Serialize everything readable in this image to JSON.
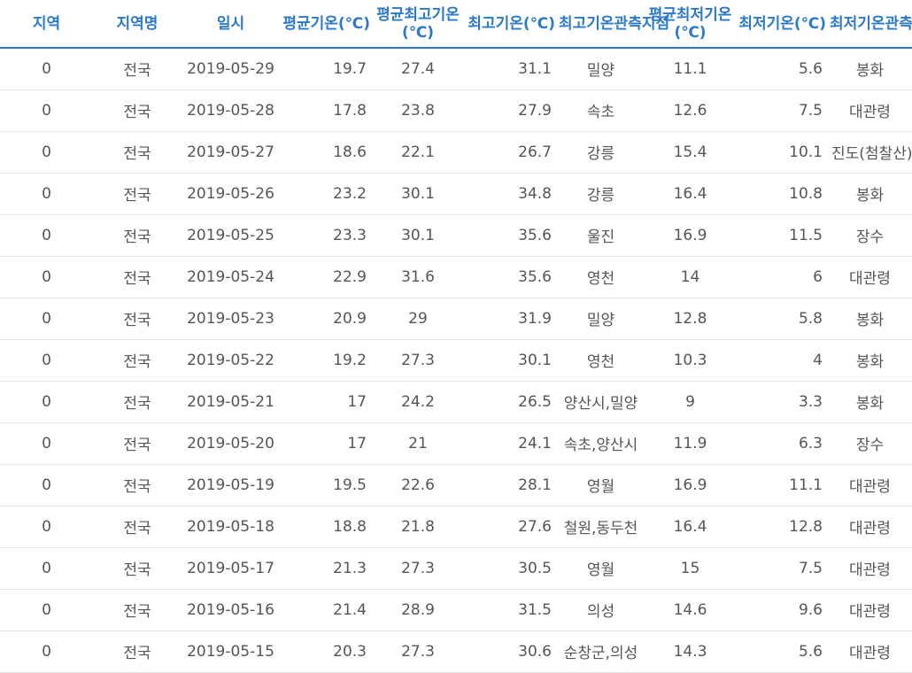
{
  "table": {
    "headers": [
      {
        "key": "region",
        "label": "지역",
        "align": "c"
      },
      {
        "key": "region_name",
        "label": "지역명",
        "align": "c"
      },
      {
        "key": "date",
        "label": "일시",
        "align": "c"
      },
      {
        "key": "avg_temp",
        "label": "평균기온(℃)",
        "align": "r"
      },
      {
        "key": "avg_max_temp",
        "label": "평균최고기온(℃)",
        "align": "c"
      },
      {
        "key": "max_temp",
        "label": "최고기온(℃)",
        "align": "r"
      },
      {
        "key": "max_temp_station",
        "label": "최고기온관측지점",
        "align": "c"
      },
      {
        "key": "avg_min_temp",
        "label": "평균최저기온(℃)",
        "align": "c"
      },
      {
        "key": "min_temp",
        "label": "최저기온(℃)",
        "align": "r"
      },
      {
        "key": "min_temp_station",
        "label": "최저기온관측지점",
        "align": "c"
      }
    ],
    "rows": [
      [
        "0",
        "전국",
        "2019-05-29",
        "19.7",
        "27.4",
        "31.1",
        "밀양",
        "11.1",
        "5.6",
        "봉화"
      ],
      [
        "0",
        "전국",
        "2019-05-28",
        "17.8",
        "23.8",
        "27.9",
        "속초",
        "12.6",
        "7.5",
        "대관령"
      ],
      [
        "0",
        "전국",
        "2019-05-27",
        "18.6",
        "22.1",
        "26.7",
        "강릉",
        "15.4",
        "10.1",
        "진도(첨찰산)"
      ],
      [
        "0",
        "전국",
        "2019-05-26",
        "23.2",
        "30.1",
        "34.8",
        "강릉",
        "16.4",
        "10.8",
        "봉화"
      ],
      [
        "0",
        "전국",
        "2019-05-25",
        "23.3",
        "30.1",
        "35.6",
        "울진",
        "16.9",
        "11.5",
        "장수"
      ],
      [
        "0",
        "전국",
        "2019-05-24",
        "22.9",
        "31.6",
        "35.6",
        "영천",
        "14",
        "6",
        "대관령"
      ],
      [
        "0",
        "전국",
        "2019-05-23",
        "20.9",
        "29",
        "31.9",
        "밀양",
        "12.8",
        "5.8",
        "봉화"
      ],
      [
        "0",
        "전국",
        "2019-05-22",
        "19.2",
        "27.3",
        "30.1",
        "영천",
        "10.3",
        "4",
        "봉화"
      ],
      [
        "0",
        "전국",
        "2019-05-21",
        "17",
        "24.2",
        "26.5",
        "양산시,밀양",
        "9",
        "3.3",
        "봉화"
      ],
      [
        "0",
        "전국",
        "2019-05-20",
        "17",
        "21",
        "24.1",
        "속초,양산시",
        "11.9",
        "6.3",
        "장수"
      ],
      [
        "0",
        "전국",
        "2019-05-19",
        "19.5",
        "22.6",
        "28.1",
        "영월",
        "16.9",
        "11.1",
        "대관령"
      ],
      [
        "0",
        "전국",
        "2019-05-18",
        "18.8",
        "21.8",
        "27.6",
        "철원,동두천",
        "16.4",
        "12.8",
        "대관령"
      ],
      [
        "0",
        "전국",
        "2019-05-17",
        "21.3",
        "27.3",
        "30.5",
        "영월",
        "15",
        "7.5",
        "대관령"
      ],
      [
        "0",
        "전국",
        "2019-05-16",
        "21.4",
        "28.9",
        "31.5",
        "의성",
        "14.6",
        "9.6",
        "대관령"
      ],
      [
        "0",
        "전국",
        "2019-05-15",
        "20.3",
        "27.3",
        "30.6",
        "순창군,의성",
        "14.3",
        "5.6",
        "대관령"
      ]
    ],
    "colors": {
      "header_text": "#2b79c9",
      "header_border": "#2b79c9",
      "cell_text": "#555555",
      "row_border": "#e4e4e4"
    }
  }
}
